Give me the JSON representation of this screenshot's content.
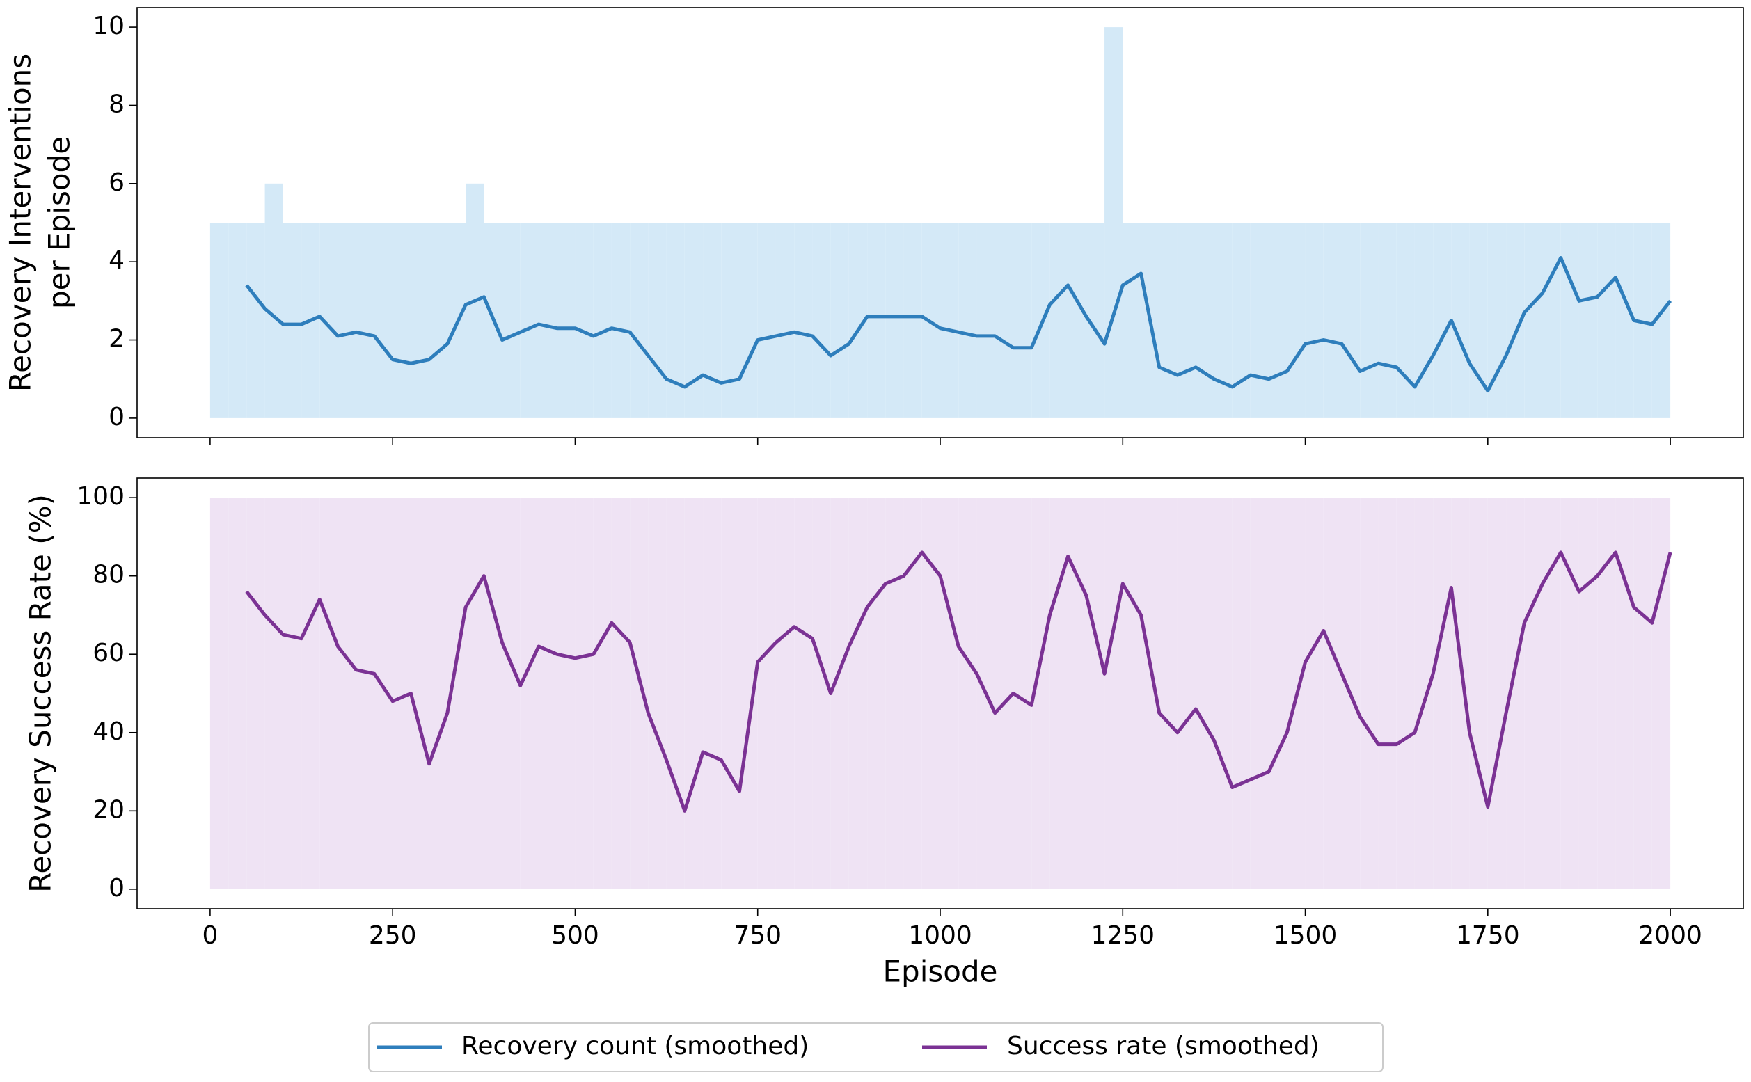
{
  "chart_data": [
    {
      "type": "line",
      "ylabel": [
        "Recovery Interventions",
        "per Episode"
      ],
      "ylim": [
        -0.5,
        10.5
      ],
      "yticks": [
        0,
        2,
        4,
        6,
        8,
        10
      ],
      "raw": {
        "color": "#d4e9f7",
        "x": [
          0,
          25,
          50,
          75,
          100,
          125,
          150,
          175,
          200,
          225,
          250,
          275,
          300,
          325,
          350,
          375,
          400,
          425,
          450,
          475,
          500,
          525,
          550,
          575,
          600,
          625,
          650,
          675,
          700,
          725,
          750,
          775,
          800,
          825,
          850,
          875,
          900,
          925,
          950,
          975,
          1000,
          1025,
          1050,
          1075,
          1100,
          1125,
          1150,
          1175,
          1200,
          1225,
          1250,
          1275,
          1300,
          1325,
          1350,
          1375,
          1400,
          1425,
          1450,
          1475,
          1500,
          1525,
          1550,
          1575,
          1600,
          1625,
          1650,
          1675,
          1700,
          1725,
          1750,
          1775,
          1800,
          1825,
          1850,
          1875,
          1900,
          1925,
          1950,
          1975
        ],
        "values": [
          5,
          5,
          5,
          6,
          5,
          5,
          5,
          5,
          5,
          5,
          5,
          5,
          5,
          5,
          6,
          5,
          5,
          5,
          5,
          5,
          5,
          5,
          5,
          5,
          5,
          5,
          5,
          5,
          5,
          5,
          5,
          5,
          5,
          5,
          5,
          5,
          5,
          5,
          5,
          5,
          5,
          5,
          5,
          5,
          5,
          5,
          5,
          5,
          5,
          10,
          5,
          5,
          5,
          5,
          5,
          5,
          5,
          5,
          5,
          5,
          5,
          5,
          5,
          5,
          5,
          5,
          5,
          5,
          5,
          5,
          5,
          5,
          5,
          5,
          5,
          5,
          5,
          5,
          5,
          5
        ]
      },
      "x": [
        50,
        75,
        100,
        125,
        150,
        175,
        200,
        225,
        250,
        275,
        300,
        325,
        350,
        375,
        400,
        425,
        450,
        475,
        500,
        525,
        550,
        575,
        600,
        625,
        650,
        675,
        700,
        725,
        750,
        775,
        800,
        825,
        850,
        875,
        900,
        925,
        950,
        975,
        1000,
        1025,
        1050,
        1075,
        1100,
        1125,
        1150,
        1175,
        1200,
        1225,
        1250,
        1275,
        1300,
        1325,
        1350,
        1375,
        1400,
        1425,
        1450,
        1475,
        1500,
        1525,
        1550,
        1575,
        1600,
        1625,
        1650,
        1675,
        1700,
        1725,
        1750,
        1775,
        1800,
        1825,
        1850,
        1875,
        1900,
        1925,
        1950,
        1975,
        2000
      ],
      "series": [
        {
          "name": "Recovery count (smoothed)",
          "color": "#2e7ebc",
          "values": [
            3.4,
            2.8,
            2.4,
            2.4,
            2.6,
            2.1,
            2.2,
            2.1,
            1.5,
            1.4,
            1.5,
            1.9,
            2.9,
            3.1,
            2.0,
            2.2,
            2.4,
            2.3,
            2.3,
            2.1,
            2.3,
            2.2,
            1.6,
            1.0,
            0.8,
            1.1,
            0.9,
            1.0,
            2.0,
            2.1,
            2.2,
            2.1,
            1.6,
            1.9,
            2.6,
            2.6,
            2.6,
            2.6,
            2.3,
            2.2,
            2.1,
            2.1,
            1.8,
            1.8,
            2.9,
            3.4,
            2.6,
            1.9,
            3.4,
            3.7,
            1.3,
            1.1,
            1.3,
            1.0,
            0.8,
            1.1,
            1.0,
            1.2,
            1.9,
            2.0,
            1.9,
            1.2,
            1.4,
            1.3,
            0.8,
            1.6,
            2.5,
            1.4,
            0.7,
            1.6,
            2.7,
            3.2,
            4.1,
            3.0,
            3.1,
            3.6,
            2.5,
            2.4,
            3.0
          ]
        }
      ]
    },
    {
      "type": "line",
      "ylabel": [
        "Recovery Success Rate (%)"
      ],
      "xlabel": "Episode",
      "xlim": [
        -100,
        2100
      ],
      "xticks": [
        0,
        250,
        500,
        750,
        1000,
        1250,
        1500,
        1750,
        2000
      ],
      "ylim": [
        -5,
        105
      ],
      "yticks": [
        0,
        20,
        40,
        60,
        80,
        100
      ],
      "raw": {
        "color": "#efe3f4",
        "x": [
          0,
          25,
          50,
          75,
          100,
          125,
          150,
          175,
          200,
          225,
          250,
          275,
          300,
          325,
          350,
          375,
          400,
          425,
          450,
          475,
          500,
          525,
          550,
          575,
          600,
          625,
          650,
          675,
          700,
          725,
          750,
          775,
          800,
          825,
          850,
          875,
          900,
          925,
          950,
          975,
          1000,
          1025,
          1050,
          1075,
          1100,
          1125,
          1150,
          1175,
          1200,
          1225,
          1250,
          1275,
          1300,
          1325,
          1350,
          1375,
          1400,
          1425,
          1450,
          1475,
          1500,
          1525,
          1550,
          1575,
          1600,
          1625,
          1650,
          1675,
          1700,
          1725,
          1750,
          1775,
          1800,
          1825,
          1850,
          1875,
          1900,
          1925,
          1950,
          1975
        ],
        "values": [
          100,
          100,
          100,
          100,
          100,
          100,
          100,
          100,
          100,
          100,
          100,
          100,
          100,
          100,
          100,
          100,
          100,
          100,
          100,
          100,
          100,
          100,
          100,
          100,
          100,
          100,
          100,
          100,
          100,
          100,
          100,
          100,
          100,
          100,
          100,
          100,
          100,
          100,
          100,
          100,
          100,
          100,
          100,
          100,
          100,
          100,
          100,
          100,
          100,
          100,
          100,
          100,
          100,
          100,
          100,
          100,
          100,
          100,
          100,
          100,
          100,
          100,
          100,
          100,
          100,
          100,
          100,
          100,
          100,
          100,
          100,
          100,
          100,
          100,
          100,
          100,
          100,
          100,
          100,
          100
        ]
      },
      "x": [
        50,
        75,
        100,
        125,
        150,
        175,
        200,
        225,
        250,
        275,
        300,
        325,
        350,
        375,
        400,
        425,
        450,
        475,
        500,
        525,
        550,
        575,
        600,
        625,
        650,
        675,
        700,
        725,
        750,
        775,
        800,
        825,
        850,
        875,
        900,
        925,
        950,
        975,
        1000,
        1025,
        1050,
        1075,
        1100,
        1125,
        1150,
        1175,
        1200,
        1225,
        1250,
        1275,
        1300,
        1325,
        1350,
        1375,
        1400,
        1425,
        1450,
        1475,
        1500,
        1525,
        1550,
        1575,
        1600,
        1625,
        1650,
        1675,
        1700,
        1725,
        1750,
        1775,
        1800,
        1825,
        1850,
        1875,
        1900,
        1925,
        1950,
        1975,
        2000
      ],
      "series": [
        {
          "name": "Success rate (smoothed)",
          "color": "#7b3294",
          "values": [
            76,
            70,
            65,
            64,
            74,
            62,
            56,
            55,
            48,
            50,
            32,
            45,
            72,
            80,
            63,
            52,
            62,
            60,
            59,
            60,
            68,
            63,
            45,
            33,
            20,
            35,
            33,
            25,
            58,
            63,
            67,
            64,
            50,
            62,
            72,
            78,
            80,
            86,
            80,
            62,
            55,
            45,
            50,
            47,
            70,
            85,
            75,
            55,
            78,
            70,
            45,
            40,
            46,
            38,
            26,
            28,
            30,
            40,
            58,
            66,
            55,
            44,
            37,
            37,
            40,
            55,
            77,
            40,
            21,
            45,
            68,
            78,
            86,
            76,
            80,
            86,
            72,
            68,
            86
          ]
        }
      ]
    }
  ]
}
